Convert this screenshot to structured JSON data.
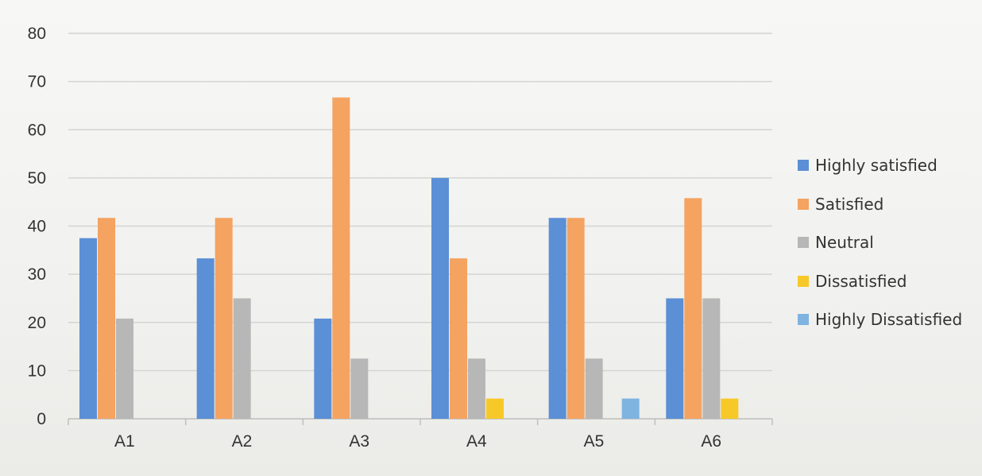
{
  "chart_data": {
    "type": "bar",
    "title": "",
    "xlabel": "",
    "ylabel": "",
    "ylim": [
      0,
      80
    ],
    "yticks": [
      0,
      10,
      20,
      30,
      40,
      50,
      60,
      70,
      80
    ],
    "grid": true,
    "legend_position": "right",
    "categories": [
      "A1",
      "A2",
      "A3",
      "A4",
      "A5",
      "A6"
    ],
    "series": [
      {
        "name": "Highly satisfied",
        "color": "#5b8fd6",
        "values": [
          37.5,
          33.3,
          20.8,
          50,
          41.7,
          25
        ]
      },
      {
        "name": "Satisfied",
        "color": "#f4a361",
        "values": [
          41.7,
          41.7,
          66.7,
          33.3,
          41.7,
          45.8
        ]
      },
      {
        "name": "Neutral",
        "color": "#b7b7b7",
        "values": [
          20.8,
          25,
          12.5,
          12.5,
          12.5,
          25
        ]
      },
      {
        "name": "Dissatisfied",
        "color": "#f7c928",
        "values": [
          0,
          0,
          0,
          4.2,
          0,
          4.2
        ]
      },
      {
        "name": "Highly Dissatisfied",
        "color": "#7fb3e0",
        "values": [
          0,
          0,
          0,
          0,
          4.2,
          0
        ]
      }
    ]
  }
}
